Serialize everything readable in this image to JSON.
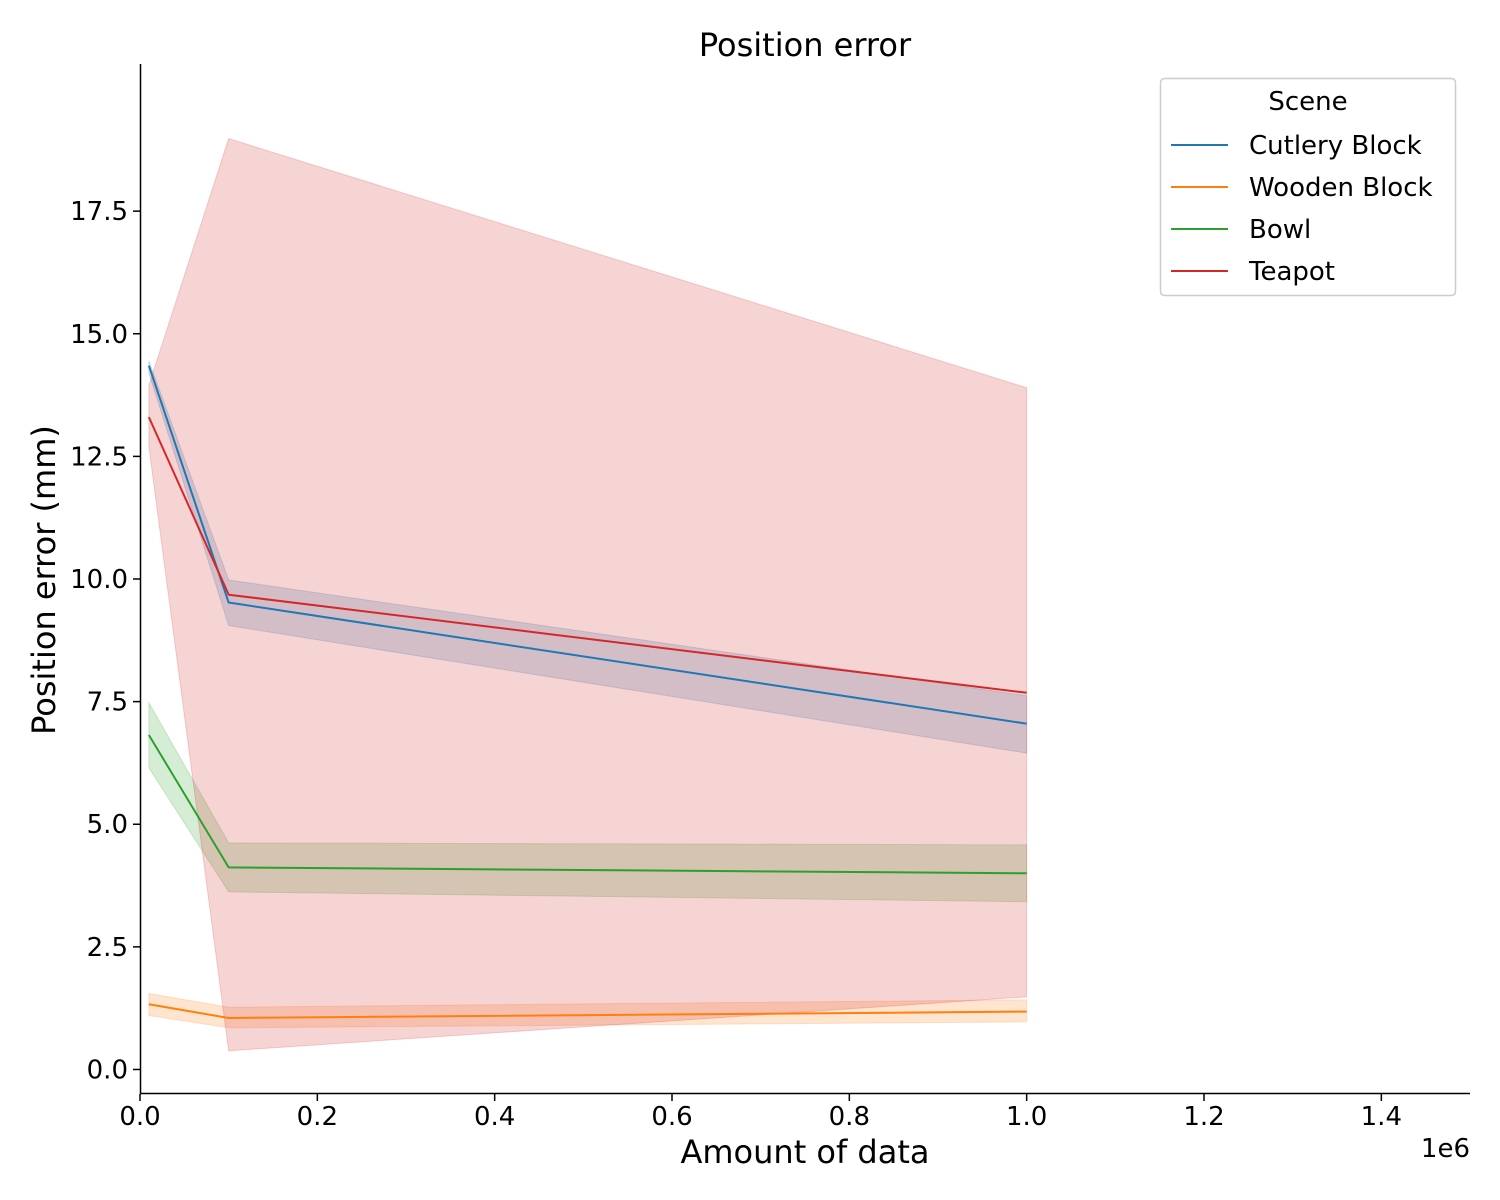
{
  "chart_data": {
    "type": "line",
    "title": "Position error",
    "xlabel": "Amount of data",
    "ylabel": "Position error (mm)",
    "x_offset_label": "1e6",
    "xlim": [
      0,
      1500000
    ],
    "ylim": [
      -0.5,
      20.5
    ],
    "x_ticks": [
      0,
      200000,
      400000,
      600000,
      800000,
      1000000,
      1200000,
      1400000
    ],
    "x_tick_labels": [
      "0.0",
      "0.2",
      "0.4",
      "0.6",
      "0.8",
      "1.0",
      "1.2",
      "1.4"
    ],
    "y_ticks": [
      0,
      2.5,
      5,
      7.5,
      10,
      12.5,
      15,
      17.5
    ],
    "y_tick_labels": [
      "0.0",
      "2.5",
      "5.0",
      "7.5",
      "10.0",
      "12.5",
      "15.0",
      "17.5"
    ],
    "grid": false,
    "legend": {
      "title": "Scene",
      "position": "top-right"
    },
    "x": [
      10000,
      100000,
      1000000
    ],
    "series": [
      {
        "name": "Cutlery Block",
        "color": "#1f77b4",
        "values": [
          14.35,
          9.52,
          7.05
        ],
        "lower": [
          14.2,
          9.05,
          6.45
        ],
        "upper": [
          14.45,
          9.98,
          7.62
        ]
      },
      {
        "name": "Wooden Block",
        "color": "#ff7f0e",
        "values": [
          1.33,
          1.05,
          1.18
        ],
        "lower": [
          1.1,
          0.85,
          0.97
        ],
        "upper": [
          1.55,
          1.27,
          1.42
        ]
      },
      {
        "name": "Bowl",
        "color": "#2ca02c",
        "values": [
          6.82,
          4.12,
          4.0
        ],
        "lower": [
          6.15,
          3.62,
          3.42
        ],
        "upper": [
          7.48,
          4.62,
          4.58
        ]
      },
      {
        "name": "Teapot",
        "color": "#d62728",
        "values": [
          13.3,
          9.68,
          7.68
        ],
        "lower": [
          12.7,
          0.38,
          1.48
        ],
        "upper": [
          13.95,
          18.98,
          13.9
        ]
      }
    ]
  }
}
